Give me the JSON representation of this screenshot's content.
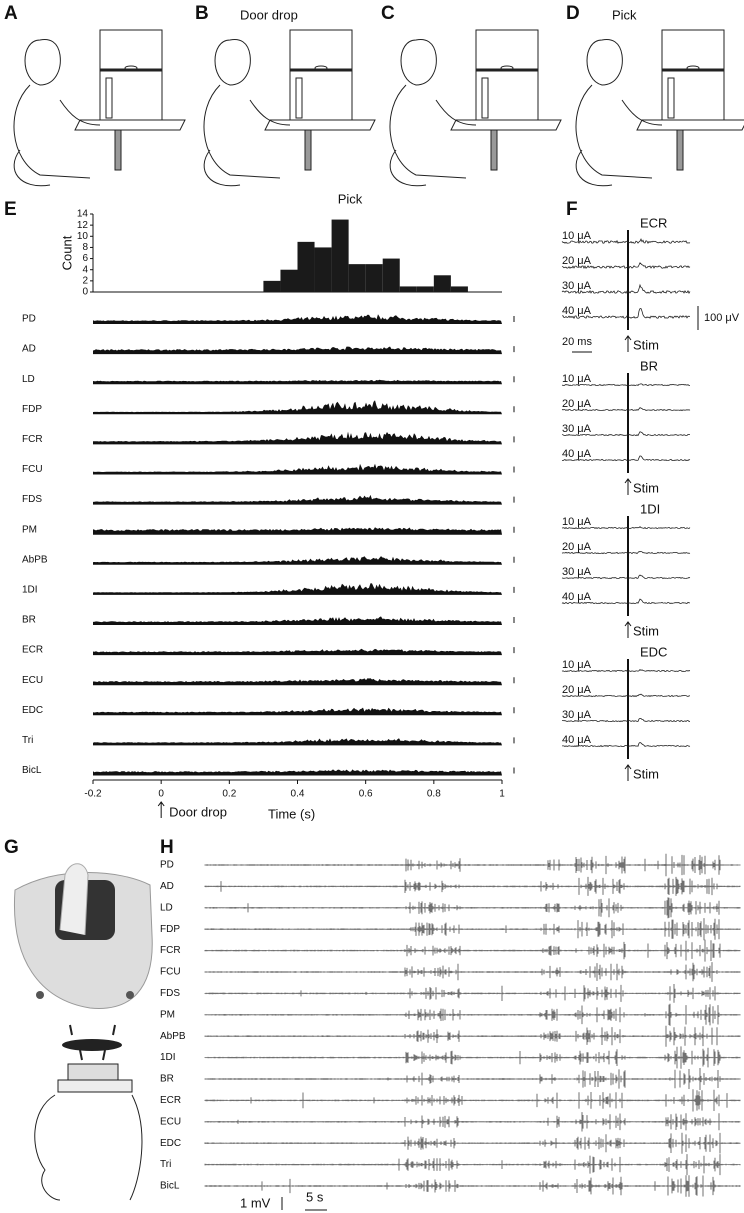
{
  "panel_labels": [
    "A",
    "B",
    "C",
    "D",
    "E",
    "F",
    "G",
    "H"
  ],
  "b_caption": "Door drop",
  "d_caption": "Pick",
  "chart_data": {
    "type": "histogram",
    "title": "Pick",
    "ylabel": "Count",
    "xlabel": "Time (s)",
    "annotation": "Door drop",
    "bins": [
      0.3,
      0.35,
      0.4,
      0.45,
      0.5,
      0.55,
      0.6,
      0.65,
      0.7,
      0.75,
      0.8,
      0.85,
      0.9
    ],
    "counts": [
      2,
      4,
      9,
      8,
      13,
      5,
      5,
      6,
      1,
      1,
      3,
      1
    ],
    "color": "#1a1a1a",
    "ylim": [
      0,
      14
    ],
    "yticks": [
      0,
      2,
      4,
      6,
      8,
      10,
      12,
      14
    ],
    "xlim": [
      -0.2,
      1
    ],
    "xticks": [
      -0.2,
      0,
      0.2,
      0.4,
      0.6,
      0.8,
      1
    ]
  },
  "e_muscles": [
    "PD",
    "AD",
    "LD",
    "FDP",
    "FCR",
    "FCU",
    "FDS",
    "PM",
    "AbPB",
    "1DI",
    "BR",
    "ECR",
    "ECU",
    "EDC",
    "Tri",
    "BicL"
  ],
  "f_groups": [
    "ECR",
    "BR",
    "1DI",
    "EDC"
  ],
  "f_currents": [
    "10 μA",
    "20 μA",
    "30 μA",
    "40 μA"
  ],
  "f_stim": "Stim",
  "f_scale_v": "100 μV",
  "f_scale_t": "20 ms",
  "h_muscles": [
    "PD",
    "AD",
    "LD",
    "FDP",
    "FCR",
    "FCU",
    "FDS",
    "PM",
    "AbPB",
    "1DI",
    "BR",
    "ECR",
    "ECU",
    "EDC",
    "Tri",
    "BicL"
  ],
  "h_scale_v": "1 mV",
  "h_scale_t": "5 s"
}
